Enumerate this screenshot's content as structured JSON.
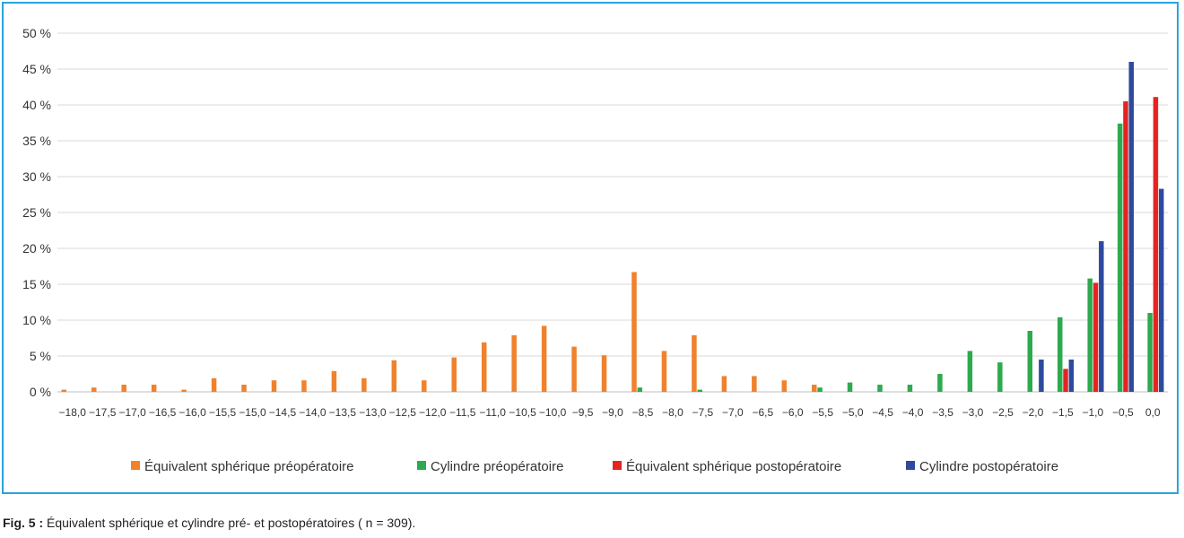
{
  "chart_data": {
    "type": "bar",
    "categories": [
      "−18,0",
      "−17,5",
      "−17,0",
      "−16,5",
      "−16,0",
      "−15,5",
      "−15,0",
      "−14,5",
      "−14,0",
      "−13,5",
      "−13,0",
      "−12,5",
      "−12,0",
      "−11,5",
      "−11,0",
      "−10,5",
      "−10,0",
      "−9,5",
      "−9,0",
      "−8,5",
      "−8,0",
      "−7,5",
      "−7,0",
      "−6,5",
      "−6,0",
      "−5,5",
      "−5,0",
      "−4,5",
      "−4,0",
      "−3,5",
      "−3,0",
      "−2,5",
      "−2,0",
      "−1,5",
      "−1,0",
      "−0,5",
      "0,0"
    ],
    "series": [
      {
        "name": "Équivalent sphérique préopératoire",
        "color": "#f0822d",
        "values": [
          0.3,
          0.6,
          1.0,
          1.0,
          0.3,
          1.9,
          1.0,
          1.6,
          1.6,
          2.9,
          1.9,
          4.4,
          1.6,
          4.8,
          6.9,
          7.9,
          9.2,
          6.3,
          5.1,
          16.7,
          5.7,
          7.9,
          2.2,
          2.2,
          1.6,
          1.0,
          0,
          0,
          0,
          0,
          0,
          0,
          0,
          0,
          0,
          0,
          0
        ]
      },
      {
        "name": "Cylindre préopératoire",
        "color": "#2eaa4e",
        "values": [
          0,
          0,
          0,
          0,
          0,
          0,
          0,
          0,
          0,
          0,
          0,
          0,
          0,
          0,
          0,
          0,
          0,
          0,
          0,
          0.6,
          0,
          0.3,
          0,
          0,
          0,
          0.6,
          1.3,
          1.0,
          1.0,
          2.5,
          5.7,
          4.1,
          8.5,
          10.4,
          15.8,
          37.4,
          11.0
        ]
      },
      {
        "name": "Équivalent sphérique postopératoire",
        "color": "#e52421",
        "values": [
          0,
          0,
          0,
          0,
          0,
          0,
          0,
          0,
          0,
          0,
          0,
          0,
          0,
          0,
          0,
          0,
          0,
          0,
          0,
          0,
          0,
          0,
          0,
          0,
          0,
          0,
          0,
          0,
          0,
          0,
          0,
          0,
          0,
          3.2,
          15.2,
          40.5,
          41.1
        ]
      },
      {
        "name": "Cylindre postopératoire",
        "color": "#2d4a9e",
        "values": [
          0,
          0,
          0,
          0,
          0,
          0,
          0,
          0,
          0,
          0,
          0,
          0,
          0,
          0,
          0,
          0,
          0,
          0,
          0,
          0,
          0,
          0,
          0,
          0,
          0,
          0,
          0,
          0,
          0,
          0,
          0,
          0,
          4.5,
          4.5,
          21.0,
          46.0,
          28.3
        ]
      }
    ],
    "yticks": [
      "0 %",
      "5 %",
      "10 %",
      "15 %",
      "20 %",
      "25 %",
      "30 %",
      "35 %",
      "40 %",
      "45 %",
      "50 %"
    ],
    "ylim": [
      0,
      50
    ],
    "grid": true,
    "legend_position": "bottom"
  },
  "caption": {
    "label": "Fig. 5 :",
    "text": " Équivalent sphérique et cylindre pré- et postopératoires ( n = 309)."
  },
  "colors": {
    "frame": "#29a3dd",
    "grid": "#d9d9d9",
    "axis": "#bfbfbf"
  }
}
